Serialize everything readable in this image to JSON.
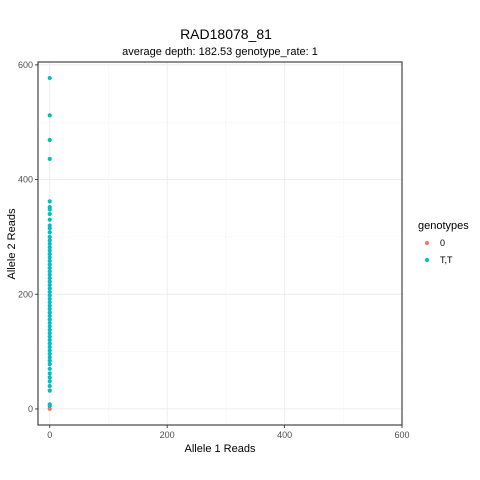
{
  "chart_data": {
    "type": "scatter",
    "title": "RAD18078_81",
    "subtitle": "average depth:  182.53  genotype_rate:  1",
    "xlabel": "Allele 1 Reads",
    "ylabel": "Allele 2 Reads",
    "xlim": [
      -20,
      600
    ],
    "ylim": [
      -28,
      605
    ],
    "xticks": [
      0,
      200,
      400,
      600
    ],
    "yticks": [
      0,
      200,
      400,
      600
    ],
    "grid": true,
    "legend": {
      "title": "genotypes",
      "placement": "right",
      "entries": [
        {
          "label": "0",
          "color": "#F8766D"
        },
        {
          "label": "T,T",
          "color": "#00BFC4"
        }
      ]
    },
    "series": [
      {
        "name": "0",
        "color": "#F8766D",
        "points": [
          [
            0,
            0
          ]
        ]
      },
      {
        "name": "T,T",
        "color": "#00BFC4",
        "points": [
          [
            0,
            577
          ],
          [
            0,
            512
          ],
          [
            0,
            469
          ],
          [
            0,
            436
          ],
          [
            0,
            362
          ],
          [
            0,
            352
          ],
          [
            0,
            348
          ],
          [
            0,
            340
          ],
          [
            0,
            330
          ],
          [
            0,
            320
          ],
          [
            0,
            315
          ],
          [
            0,
            308
          ],
          [
            0,
            300
          ],
          [
            0,
            294
          ],
          [
            0,
            288
          ],
          [
            0,
            282
          ],
          [
            0,
            276
          ],
          [
            0,
            270
          ],
          [
            0,
            264
          ],
          [
            0,
            258
          ],
          [
            0,
            252
          ],
          [
            0,
            246
          ],
          [
            0,
            240
          ],
          [
            0,
            234
          ],
          [
            0,
            228
          ],
          [
            0,
            222
          ],
          [
            0,
            216
          ],
          [
            0,
            210
          ],
          [
            0,
            204
          ],
          [
            0,
            198
          ],
          [
            0,
            192
          ],
          [
            0,
            186
          ],
          [
            0,
            180
          ],
          [
            0,
            174
          ],
          [
            0,
            168
          ],
          [
            0,
            162
          ],
          [
            0,
            156
          ],
          [
            0,
            150
          ],
          [
            0,
            144
          ],
          [
            0,
            138
          ],
          [
            0,
            132
          ],
          [
            0,
            126
          ],
          [
            0,
            120
          ],
          [
            0,
            114
          ],
          [
            0,
            108
          ],
          [
            0,
            102
          ],
          [
            0,
            96
          ],
          [
            0,
            90
          ],
          [
            0,
            84
          ],
          [
            0,
            78
          ],
          [
            0,
            70
          ],
          [
            0,
            62
          ],
          [
            0,
            55
          ],
          [
            0,
            48
          ],
          [
            0,
            40
          ],
          [
            0,
            32
          ],
          [
            0,
            8
          ],
          [
            0,
            5
          ]
        ]
      }
    ]
  }
}
